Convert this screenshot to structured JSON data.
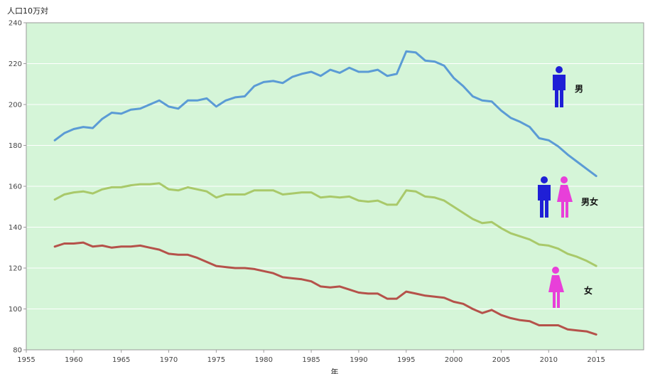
{
  "chart_data": {
    "type": "line",
    "title": "",
    "ylabel": "人口10万対",
    "xlabel": "年",
    "xlim": [
      1955,
      2020
    ],
    "ylim": [
      80,
      240
    ],
    "xticks": [
      1955,
      1960,
      1965,
      1970,
      1975,
      1980,
      1985,
      1990,
      1995,
      2000,
      2005,
      2010,
      2015
    ],
    "yticks": [
      80,
      100,
      120,
      140,
      160,
      180,
      200,
      220,
      240
    ],
    "grid": "horizontal",
    "background": "#d5f5d8",
    "x": [
      1958,
      1959,
      1960,
      1961,
      1962,
      1963,
      1964,
      1965,
      1966,
      1967,
      1968,
      1969,
      1970,
      1971,
      1972,
      1973,
      1974,
      1975,
      1976,
      1977,
      1978,
      1979,
      1980,
      1981,
      1982,
      1983,
      1984,
      1985,
      1986,
      1987,
      1988,
      1989,
      1990,
      1991,
      1992,
      1993,
      1994,
      1995,
      1996,
      1997,
      1998,
      1999,
      2000,
      2001,
      2002,
      2003,
      2004,
      2005,
      2006,
      2007,
      2008,
      2009,
      2010,
      2011,
      2012,
      2013,
      2014,
      2015
    ],
    "series": [
      {
        "name": "男",
        "color": "#5b9bd5",
        "values": [
          182.5,
          186,
          188,
          189,
          188.5,
          193,
          196,
          195.5,
          197.5,
          198,
          200,
          202,
          199,
          198,
          202,
          202,
          203,
          199,
          202,
          203.5,
          204,
          209,
          211,
          211.5,
          210.5,
          213.5,
          215,
          216,
          214,
          217,
          215.5,
          218,
          216,
          216,
          217,
          214,
          215,
          226,
          225.5,
          221.5,
          221,
          219,
          213,
          209,
          204,
          202,
          201.5,
          197,
          193.5,
          191.5,
          189,
          183.5,
          182.5,
          179.5,
          175.5,
          172,
          168.5,
          165
        ]
      },
      {
        "name": "男女",
        "color": "#a9c96a",
        "values": [
          153.5,
          156,
          157,
          157.5,
          156.5,
          158.5,
          159.5,
          159.5,
          160.5,
          161,
          161,
          161.5,
          158.5,
          158,
          159.5,
          158.5,
          157.5,
          154.5,
          156,
          156,
          156,
          158,
          158,
          158,
          156,
          156.5,
          157,
          157,
          154.5,
          155,
          154.5,
          155,
          153,
          152.5,
          153,
          151,
          151,
          158,
          157.5,
          155,
          154.5,
          153,
          150,
          147,
          144,
          142,
          142.5,
          139.5,
          137,
          135.5,
          134,
          131.5,
          131,
          129.5,
          127,
          125.5,
          123.5,
          121
        ]
      },
      {
        "name": "女",
        "color": "#b5524a",
        "values": [
          130.5,
          132,
          132,
          132.5,
          130.5,
          131,
          130,
          130.5,
          130.5,
          131,
          130,
          129,
          127,
          126.5,
          126.5,
          125,
          123,
          121,
          120.5,
          120,
          120,
          119.5,
          118.5,
          117.5,
          115.5,
          115,
          114.5,
          113.5,
          111,
          110.5,
          111,
          109.5,
          108,
          107.5,
          107.5,
          105,
          105,
          108.5,
          107.5,
          106.5,
          106,
          105.5,
          103.5,
          102.5,
          100,
          98,
          99.5,
          97,
          95.5,
          94.5,
          94,
          92,
          92,
          92,
          90,
          89.5,
          89,
          87.5
        ]
      }
    ],
    "legend": [
      {
        "label": "男",
        "series": "男",
        "figures": [
          "male"
        ]
      },
      {
        "label": "男女",
        "series": "男女",
        "figures": [
          "male",
          "female"
        ]
      },
      {
        "label": "女",
        "series": "女",
        "figures": [
          "female"
        ]
      }
    ],
    "figure_colors": {
      "male": "#1f1fd6",
      "female": "#e83fd9"
    }
  }
}
